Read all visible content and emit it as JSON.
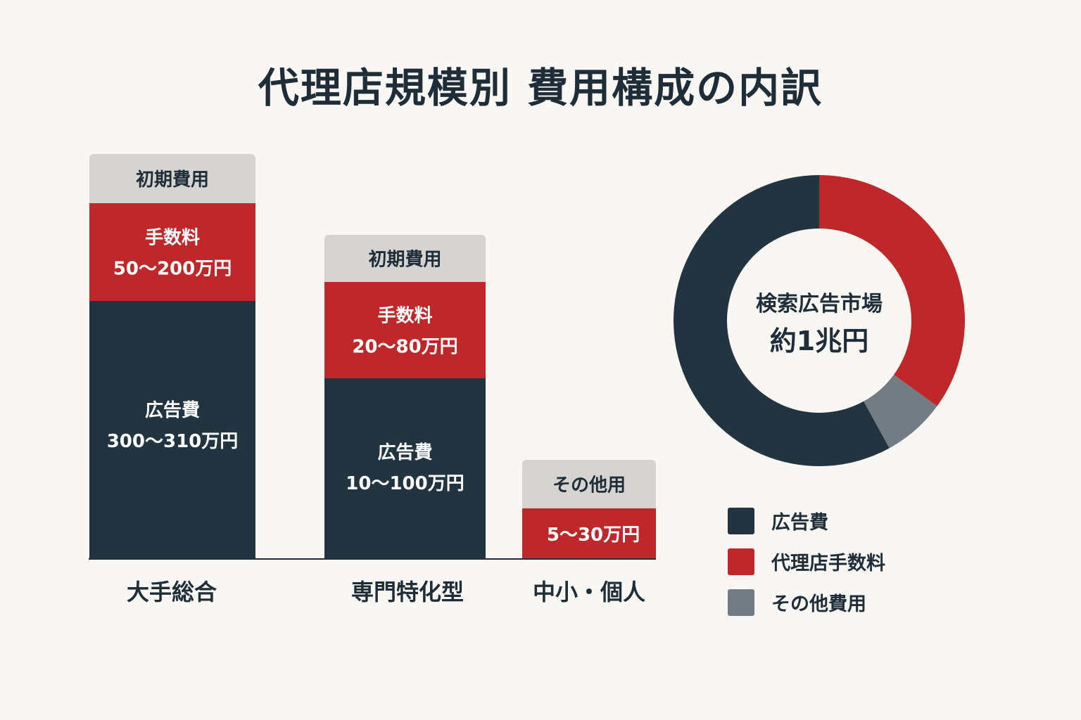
{
  "title": "代理店規模別 費用構成の内訳",
  "colors": {
    "ad": "#233441",
    "fee": "#be282b",
    "other": "#737c82",
    "header": "#d5d4d1",
    "text_dark": "#1f2d39",
    "text_light": "#ffffff",
    "background": "#f8f7f4"
  },
  "chart_data": [
    {
      "type": "bar",
      "stacked": true,
      "categories": [
        "大手総合",
        "専門特化型",
        "中小・個人"
      ],
      "bars": [
        {
          "category": "大手総合",
          "header": "初期費用",
          "segments": [
            {
              "label": "広告費",
              "range": "300～310万円",
              "series": "ad"
            },
            {
              "label": "手数料",
              "range": "50～200万円",
              "series": "fee"
            }
          ]
        },
        {
          "category": "専門特化型",
          "header": "初期費用",
          "segments": [
            {
              "label": "広告費",
              "range": "10～100万円",
              "series": "ad"
            },
            {
              "label": "手数料",
              "range": "20～80万円",
              "series": "fee"
            }
          ]
        },
        {
          "category": "中小・個人",
          "header": "その他用",
          "segments": [
            {
              "label": "",
              "range": "5～30万円",
              "series": "fee"
            }
          ]
        }
      ]
    },
    {
      "type": "pie",
      "donut": true,
      "center_label": "検索広告市場",
      "center_value": "約1兆円",
      "slices": [
        {
          "label": "代理店手数料",
          "value": 35,
          "series": "fee"
        },
        {
          "label": "その他費用",
          "value": 7,
          "series": "other"
        },
        {
          "label": "広告費",
          "value": 58,
          "series": "ad"
        }
      ],
      "legend": [
        {
          "label": "広告費",
          "series": "ad"
        },
        {
          "label": "代理店手数料",
          "series": "fee"
        },
        {
          "label": "その他費用",
          "series": "other"
        }
      ],
      "legend_position": "bottom-right"
    }
  ]
}
